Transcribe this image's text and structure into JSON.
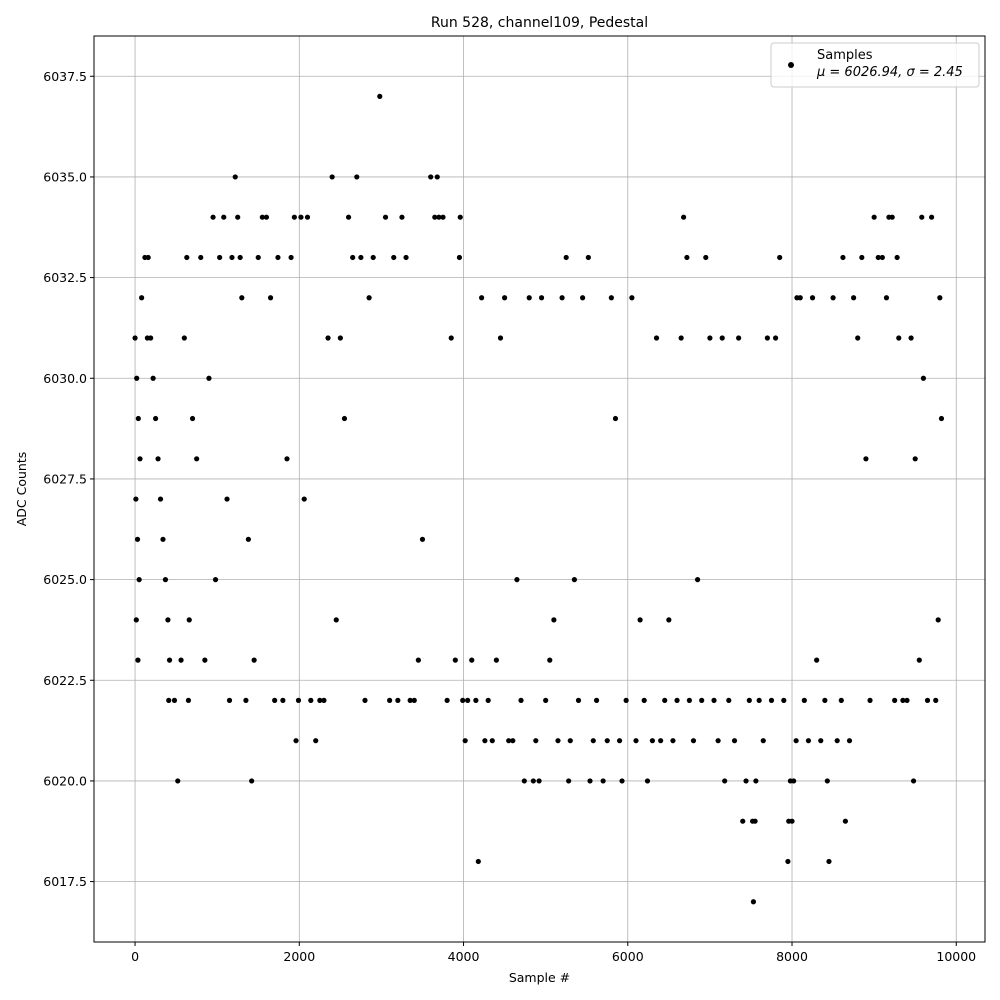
{
  "chart_data": {
    "type": "scatter",
    "title": "Run 528, channel109, Pedestal",
    "xlabel": "Sample #",
    "ylabel": "ADC Counts",
    "xlim": [
      -500,
      10350
    ],
    "ylim": [
      6016.0,
      6038.5
    ],
    "xticks": [
      0,
      2000,
      4000,
      6000,
      8000,
      10000
    ],
    "xtick_labels": [
      "0",
      "2000",
      "4000",
      "6000",
      "8000",
      "10000"
    ],
    "yticks": [
      6017.5,
      6020.0,
      6022.5,
      6025.0,
      6027.5,
      6030.0,
      6032.5,
      6035.0,
      6037.5
    ],
    "ytick_labels": [
      "6017.5",
      "6020.0",
      "6022.5",
      "6025.0",
      "6027.5",
      "6030.0",
      "6032.5",
      "6035.0",
      "6037.5"
    ],
    "grid": true,
    "legend": {
      "placement": "top-right",
      "entries": [
        {
          "label": "Samples",
          "stats": "μ = 6026.94, σ = 2.45"
        }
      ]
    },
    "series": [
      {
        "name": "Samples",
        "color": "#000000",
        "points": [
          [
            0,
            6031
          ],
          [
            20,
            6030
          ],
          [
            40,
            6029
          ],
          [
            60,
            6028
          ],
          [
            10,
            6027
          ],
          [
            30,
            6026
          ],
          [
            50,
            6025
          ],
          [
            15,
            6024
          ],
          [
            35,
            6023
          ],
          [
            80,
            6032
          ],
          [
            120,
            6033
          ],
          [
            160,
            6033
          ],
          [
            150,
            6031
          ],
          [
            190,
            6031
          ],
          [
            220,
            6030
          ],
          [
            250,
            6029
          ],
          [
            280,
            6028
          ],
          [
            310,
            6027
          ],
          [
            340,
            6026
          ],
          [
            370,
            6025
          ],
          [
            400,
            6024
          ],
          [
            420,
            6023
          ],
          [
            410,
            6022
          ],
          [
            480,
            6022
          ],
          [
            520,
            6020
          ],
          [
            560,
            6023
          ],
          [
            600,
            6031
          ],
          [
            630,
            6033
          ],
          [
            660,
            6024
          ],
          [
            650,
            6022
          ],
          [
            700,
            6029
          ],
          [
            750,
            6028
          ],
          [
            800,
            6033
          ],
          [
            850,
            6023
          ],
          [
            900,
            6030
          ],
          [
            950,
            6034
          ],
          [
            980,
            6025
          ],
          [
            1030,
            6033
          ],
          [
            1080,
            6034
          ],
          [
            1120,
            6027
          ],
          [
            1150,
            6022
          ],
          [
            1180,
            6033
          ],
          [
            1220,
            6035
          ],
          [
            1250,
            6034
          ],
          [
            1280,
            6033
          ],
          [
            1300,
            6032
          ],
          [
            1350,
            6022
          ],
          [
            1380,
            6026
          ],
          [
            1420,
            6020
          ],
          [
            1450,
            6023
          ],
          [
            1500,
            6033
          ],
          [
            1550,
            6034
          ],
          [
            1600,
            6034
          ],
          [
            1650,
            6032
          ],
          [
            1700,
            6022
          ],
          [
            1740,
            6033
          ],
          [
            1800,
            6022
          ],
          [
            1850,
            6028
          ],
          [
            1900,
            6033
          ],
          [
            1940,
            6034
          ],
          [
            1960,
            6021
          ],
          [
            1990,
            6022
          ],
          [
            2020,
            6034
          ],
          [
            2060,
            6027
          ],
          [
            2100,
            6034
          ],
          [
            2140,
            6022
          ],
          [
            2200,
            6021
          ],
          [
            2250,
            6022
          ],
          [
            2300,
            6022
          ],
          [
            2350,
            6031
          ],
          [
            2400,
            6035
          ],
          [
            2450,
            6024
          ],
          [
            2500,
            6031
          ],
          [
            2550,
            6029
          ],
          [
            2600,
            6034
          ],
          [
            2650,
            6033
          ],
          [
            2700,
            6035
          ],
          [
            2750,
            6033
          ],
          [
            2800,
            6022
          ],
          [
            2850,
            6032
          ],
          [
            2900,
            6033
          ],
          [
            2980,
            6037
          ],
          [
            3050,
            6034
          ],
          [
            3100,
            6022
          ],
          [
            3150,
            6033
          ],
          [
            3200,
            6022
          ],
          [
            3250,
            6034
          ],
          [
            3300,
            6033
          ],
          [
            3350,
            6022
          ],
          [
            3400,
            6022
          ],
          [
            3450,
            6023
          ],
          [
            3500,
            6026
          ],
          [
            3600,
            6035
          ],
          [
            3650,
            6034
          ],
          [
            3680,
            6035
          ],
          [
            3700,
            6034
          ],
          [
            3750,
            6034
          ],
          [
            3800,
            6022
          ],
          [
            3850,
            6031
          ],
          [
            3900,
            6023
          ],
          [
            3950,
            6033
          ],
          [
            3960,
            6034
          ],
          [
            3990,
            6022
          ],
          [
            4020,
            6021
          ],
          [
            4050,
            6022
          ],
          [
            4100,
            6023
          ],
          [
            4150,
            6022
          ],
          [
            4180,
            6018
          ],
          [
            4220,
            6032
          ],
          [
            4260,
            6021
          ],
          [
            4300,
            6022
          ],
          [
            4350,
            6021
          ],
          [
            4400,
            6023
          ],
          [
            4450,
            6031
          ],
          [
            4500,
            6032
          ],
          [
            4550,
            6021
          ],
          [
            4600,
            6021
          ],
          [
            4650,
            6025
          ],
          [
            4700,
            6022
          ],
          [
            4740,
            6020
          ],
          [
            4800,
            6032
          ],
          [
            4850,
            6020
          ],
          [
            4880,
            6021
          ],
          [
            4920,
            6020
          ],
          [
            4950,
            6032
          ],
          [
            5000,
            6022
          ],
          [
            5050,
            6023
          ],
          [
            5100,
            6024
          ],
          [
            5150,
            6021
          ],
          [
            5200,
            6032
          ],
          [
            5250,
            6033
          ],
          [
            5280,
            6020
          ],
          [
            5300,
            6021
          ],
          [
            5350,
            6025
          ],
          [
            5400,
            6022
          ],
          [
            5450,
            6032
          ],
          [
            5520,
            6033
          ],
          [
            5540,
            6020
          ],
          [
            5580,
            6021
          ],
          [
            5620,
            6022
          ],
          [
            5700,
            6020
          ],
          [
            5750,
            6021
          ],
          [
            5800,
            6032
          ],
          [
            5850,
            6029
          ],
          [
            5900,
            6021
          ],
          [
            5930,
            6020
          ],
          [
            5980,
            6022
          ],
          [
            6050,
            6032
          ],
          [
            6100,
            6021
          ],
          [
            6150,
            6024
          ],
          [
            6200,
            6022
          ],
          [
            6240,
            6020
          ],
          [
            6300,
            6021
          ],
          [
            6350,
            6031
          ],
          [
            6400,
            6021
          ],
          [
            6450,
            6022
          ],
          [
            6500,
            6024
          ],
          [
            6550,
            6021
          ],
          [
            6600,
            6022
          ],
          [
            6650,
            6031
          ],
          [
            6680,
            6034
          ],
          [
            6720,
            6033
          ],
          [
            6750,
            6022
          ],
          [
            6800,
            6021
          ],
          [
            6850,
            6025
          ],
          [
            6900,
            6022
          ],
          [
            6950,
            6033
          ],
          [
            7000,
            6031
          ],
          [
            7050,
            6022
          ],
          [
            7100,
            6021
          ],
          [
            7150,
            6031
          ],
          [
            7180,
            6020
          ],
          [
            7230,
            6022
          ],
          [
            7300,
            6021
          ],
          [
            7350,
            6031
          ],
          [
            7400,
            6019
          ],
          [
            7440,
            6020
          ],
          [
            7480,
            6022
          ],
          [
            7520,
            6019
          ],
          [
            7530,
            6017
          ],
          [
            7550,
            6019
          ],
          [
            7560,
            6020
          ],
          [
            7600,
            6022
          ],
          [
            7650,
            6021
          ],
          [
            7700,
            6031
          ],
          [
            7750,
            6022
          ],
          [
            7800,
            6031
          ],
          [
            7850,
            6033
          ],
          [
            7900,
            6022
          ],
          [
            7950,
            6018
          ],
          [
            7960,
            6019
          ],
          [
            7980,
            6020
          ],
          [
            8000,
            6019
          ],
          [
            8020,
            6020
          ],
          [
            8050,
            6021
          ],
          [
            8060,
            6032
          ],
          [
            8100,
            6032
          ],
          [
            8150,
            6022
          ],
          [
            8200,
            6021
          ],
          [
            8250,
            6032
          ],
          [
            8300,
            6023
          ],
          [
            8350,
            6021
          ],
          [
            8400,
            6022
          ],
          [
            8430,
            6020
          ],
          [
            8450,
            6018
          ],
          [
            8500,
            6032
          ],
          [
            8550,
            6021
          ],
          [
            8600,
            6022
          ],
          [
            8620,
            6033
          ],
          [
            8650,
            6019
          ],
          [
            8700,
            6021
          ],
          [
            8750,
            6032
          ],
          [
            8800,
            6031
          ],
          [
            8850,
            6033
          ],
          [
            8900,
            6028
          ],
          [
            8950,
            6022
          ],
          [
            9000,
            6034
          ],
          [
            9050,
            6033
          ],
          [
            9100,
            6033
          ],
          [
            9150,
            6032
          ],
          [
            9180,
            6034
          ],
          [
            9220,
            6034
          ],
          [
            9250,
            6022
          ],
          [
            9280,
            6033
          ],
          [
            9300,
            6031
          ],
          [
            9350,
            6022
          ],
          [
            9400,
            6022
          ],
          [
            9450,
            6031
          ],
          [
            9480,
            6020
          ],
          [
            9500,
            6028
          ],
          [
            9550,
            6023
          ],
          [
            9580,
            6034
          ],
          [
            9600,
            6030
          ],
          [
            9650,
            6022
          ],
          [
            9700,
            6034
          ],
          [
            9750,
            6022
          ],
          [
            9780,
            6024
          ],
          [
            9800,
            6032
          ],
          [
            9820,
            6029
          ]
        ]
      }
    ]
  }
}
